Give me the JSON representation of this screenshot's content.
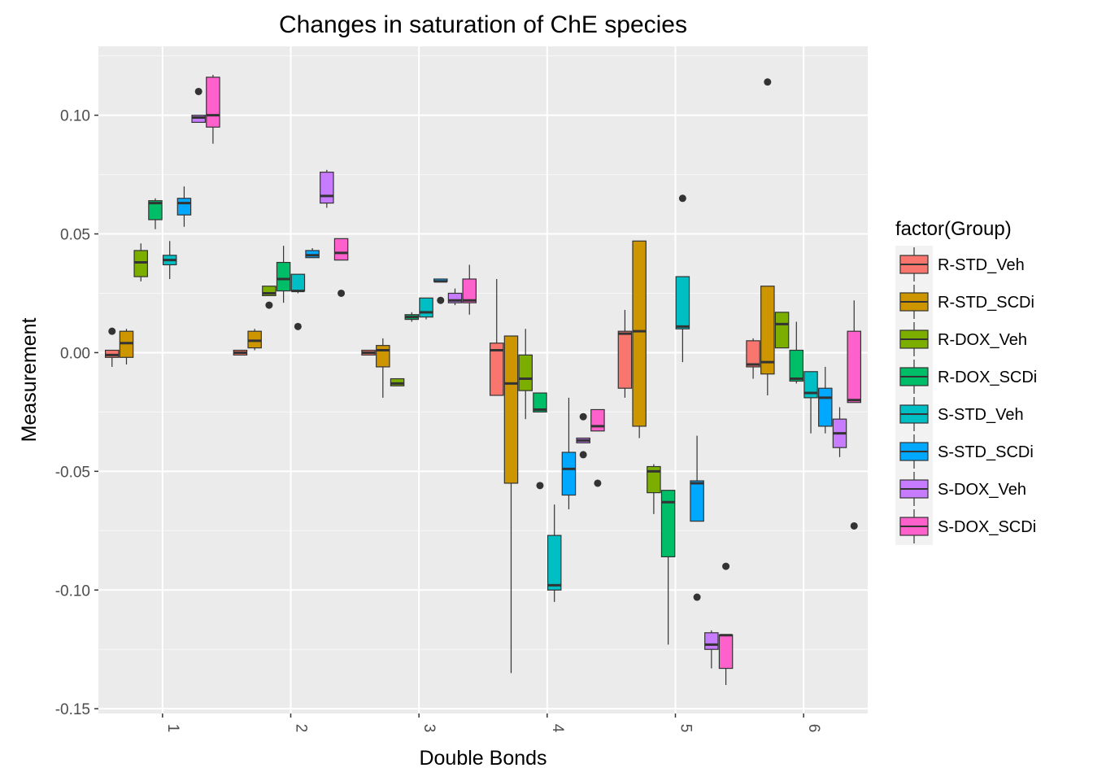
{
  "chart_data": {
    "type": "box",
    "title": "Changes in saturation of ChE species",
    "xlabel": "Double Bonds",
    "ylabel": "Measurement",
    "categories": [
      "1",
      "2",
      "3",
      "4",
      "5",
      "6"
    ],
    "ylim": [
      -0.152,
      0.129
    ],
    "yticks": [
      0.1,
      0.05,
      0.0,
      -0.05,
      -0.1,
      -0.15
    ],
    "ytick_labels": [
      "0.10",
      "0.05",
      "0.00",
      "-0.05",
      "-0.10",
      "-0.15"
    ],
    "grid": true,
    "legend_position": "right",
    "legend_title": "factor(Group)",
    "series": [
      {
        "name": "R-STD_Veh",
        "color": "#F8766D",
        "boxes": [
          {
            "min": -0.006,
            "q1": -0.002,
            "median": -0.001,
            "q3": 0.001,
            "max": 0.001,
            "outliers": [
              0.009
            ]
          },
          {
            "min": -0.001,
            "q1": -0.001,
            "median": 0.0,
            "q3": 0.001,
            "max": 0.001,
            "outliers": []
          },
          {
            "min": -0.001,
            "q1": -0.001,
            "median": 0.0,
            "q3": 0.001,
            "max": 0.001,
            "outliers": []
          },
          {
            "min": -0.018,
            "q1": -0.018,
            "median": 0.001,
            "q3": 0.004,
            "max": 0.031,
            "outliers": []
          },
          {
            "min": -0.019,
            "q1": -0.015,
            "median": 0.008,
            "q3": 0.009,
            "max": 0.018,
            "outliers": []
          },
          {
            "min": -0.011,
            "q1": -0.006,
            "median": -0.005,
            "q3": 0.005,
            "max": 0.006,
            "outliers": []
          }
        ]
      },
      {
        "name": "R-STD_SCDi",
        "color": "#CD9600",
        "boxes": [
          {
            "min": -0.005,
            "q1": -0.002,
            "median": 0.004,
            "q3": 0.009,
            "max": 0.01,
            "outliers": []
          },
          {
            "min": 0.001,
            "q1": 0.002,
            "median": 0.005,
            "q3": 0.009,
            "max": 0.01,
            "outliers": []
          },
          {
            "min": -0.019,
            "q1": -0.006,
            "median": 0.001,
            "q3": 0.003,
            "max": 0.006,
            "outliers": []
          },
          {
            "min": -0.135,
            "q1": -0.055,
            "median": -0.013,
            "q3": 0.007,
            "max": 0.007,
            "outliers": []
          },
          {
            "min": -0.036,
            "q1": -0.031,
            "median": 0.009,
            "q3": 0.047,
            "max": 0.047,
            "outliers": []
          },
          {
            "min": -0.018,
            "q1": -0.009,
            "median": -0.004,
            "q3": 0.028,
            "max": 0.028,
            "outliers": [
              0.114
            ]
          }
        ]
      },
      {
        "name": "R-DOX_Veh",
        "color": "#7CAE00",
        "boxes": [
          {
            "min": 0.03,
            "q1": 0.032,
            "median": 0.038,
            "q3": 0.043,
            "max": 0.046,
            "outliers": []
          },
          {
            "min": 0.024,
            "q1": 0.024,
            "median": 0.025,
            "q3": 0.028,
            "max": 0.028,
            "outliers": [
              0.02
            ]
          },
          {
            "min": -0.014,
            "q1": -0.014,
            "median": -0.013,
            "q3": -0.011,
            "max": -0.011,
            "outliers": []
          },
          {
            "min": -0.028,
            "q1": -0.016,
            "median": -0.011,
            "q3": -0.001,
            "max": 0.01,
            "outliers": []
          },
          {
            "min": -0.068,
            "q1": -0.059,
            "median": -0.05,
            "q3": -0.048,
            "max": -0.047,
            "outliers": []
          },
          {
            "min": 0.002,
            "q1": 0.002,
            "median": 0.012,
            "q3": 0.017,
            "max": 0.017,
            "outliers": []
          }
        ]
      },
      {
        "name": "R-DOX_SCDi",
        "color": "#00BE67",
        "boxes": [
          {
            "min": 0.052,
            "q1": 0.056,
            "median": 0.063,
            "q3": 0.064,
            "max": 0.065,
            "outliers": []
          },
          {
            "min": 0.021,
            "q1": 0.026,
            "median": 0.031,
            "q3": 0.038,
            "max": 0.045,
            "outliers": []
          },
          {
            "min": 0.013,
            "q1": 0.014,
            "median": 0.015,
            "q3": 0.016,
            "max": 0.017,
            "outliers": []
          },
          {
            "min": -0.025,
            "q1": -0.025,
            "median": -0.024,
            "q3": -0.017,
            "max": -0.017,
            "outliers": [
              -0.056
            ]
          },
          {
            "min": -0.123,
            "q1": -0.086,
            "median": -0.063,
            "q3": -0.058,
            "max": -0.058,
            "outliers": []
          },
          {
            "min": -0.013,
            "q1": -0.012,
            "median": -0.011,
            "q3": 0.001,
            "max": 0.013,
            "outliers": []
          }
        ]
      },
      {
        "name": "S-STD_Veh",
        "color": "#00BFC4",
        "boxes": [
          {
            "min": 0.031,
            "q1": 0.037,
            "median": 0.039,
            "q3": 0.041,
            "max": 0.047,
            "outliers": []
          },
          {
            "min": 0.025,
            "q1": 0.026,
            "median": 0.026,
            "q3": 0.033,
            "max": 0.033,
            "outliers": [
              0.011
            ]
          },
          {
            "min": 0.014,
            "q1": 0.015,
            "median": 0.017,
            "q3": 0.023,
            "max": 0.023,
            "outliers": []
          },
          {
            "min": -0.105,
            "q1": -0.1,
            "median": -0.098,
            "q3": -0.077,
            "max": -0.064,
            "outliers": []
          },
          {
            "min": -0.004,
            "q1": 0.01,
            "median": 0.011,
            "q3": 0.032,
            "max": 0.032,
            "outliers": [
              0.065
            ]
          },
          {
            "min": -0.034,
            "q1": -0.019,
            "median": -0.017,
            "q3": -0.008,
            "max": -0.008,
            "outliers": []
          }
        ]
      },
      {
        "name": "S-STD_SCDi",
        "color": "#00A9FF",
        "boxes": [
          {
            "min": 0.053,
            "q1": 0.058,
            "median": 0.063,
            "q3": 0.065,
            "max": 0.07,
            "outliers": []
          },
          {
            "min": 0.04,
            "q1": 0.04,
            "median": 0.041,
            "q3": 0.043,
            "max": 0.044,
            "outliers": []
          },
          {
            "min": 0.03,
            "q1": 0.03,
            "median": 0.03,
            "q3": 0.031,
            "max": 0.031,
            "outliers": [
              0.022
            ]
          },
          {
            "min": -0.066,
            "q1": -0.06,
            "median": -0.049,
            "q3": -0.042,
            "max": -0.019,
            "outliers": []
          },
          {
            "min": -0.071,
            "q1": -0.071,
            "median": -0.055,
            "q3": -0.054,
            "max": -0.035,
            "outliers": [
              -0.103
            ]
          },
          {
            "min": -0.034,
            "q1": -0.031,
            "median": -0.019,
            "q3": -0.015,
            "max": -0.006,
            "outliers": []
          }
        ]
      },
      {
        "name": "S-DOX_Veh",
        "color": "#C77CFF",
        "boxes": [
          {
            "min": 0.097,
            "q1": 0.097,
            "median": 0.099,
            "q3": 0.1,
            "max": 0.1,
            "outliers": [
              0.11
            ]
          },
          {
            "min": 0.061,
            "q1": 0.063,
            "median": 0.066,
            "q3": 0.076,
            "max": 0.077,
            "outliers": []
          },
          {
            "min": 0.02,
            "q1": 0.021,
            "median": 0.022,
            "q3": 0.025,
            "max": 0.027,
            "outliers": []
          },
          {
            "min": -0.038,
            "q1": -0.038,
            "median": -0.037,
            "q3": -0.036,
            "max": -0.036,
            "outliers": [
              -0.027,
              -0.043
            ]
          },
          {
            "min": -0.133,
            "q1": -0.125,
            "median": -0.123,
            "q3": -0.118,
            "max": -0.117,
            "outliers": []
          },
          {
            "min": -0.044,
            "q1": -0.04,
            "median": -0.034,
            "q3": -0.028,
            "max": -0.023,
            "outliers": []
          }
        ]
      },
      {
        "name": "S-DOX_SCDi",
        "color": "#FF61CC",
        "boxes": [
          {
            "min": 0.088,
            "q1": 0.095,
            "median": 0.1,
            "q3": 0.116,
            "max": 0.117,
            "outliers": []
          },
          {
            "min": 0.039,
            "q1": 0.039,
            "median": 0.042,
            "q3": 0.048,
            "max": 0.048,
            "outliers": [
              0.025
            ]
          },
          {
            "min": 0.016,
            "q1": 0.021,
            "median": 0.022,
            "q3": 0.031,
            "max": 0.037,
            "outliers": []
          },
          {
            "min": -0.033,
            "q1": -0.033,
            "median": -0.031,
            "q3": -0.024,
            "max": -0.024,
            "outliers": [
              -0.055
            ]
          },
          {
            "min": -0.14,
            "q1": -0.133,
            "median": -0.119,
            "q3": -0.119,
            "max": -0.119,
            "outliers": [
              -0.09
            ]
          },
          {
            "min": -0.021,
            "q1": -0.021,
            "median": -0.02,
            "q3": 0.009,
            "max": 0.022,
            "outliers": [
              -0.073
            ]
          }
        ]
      }
    ]
  }
}
